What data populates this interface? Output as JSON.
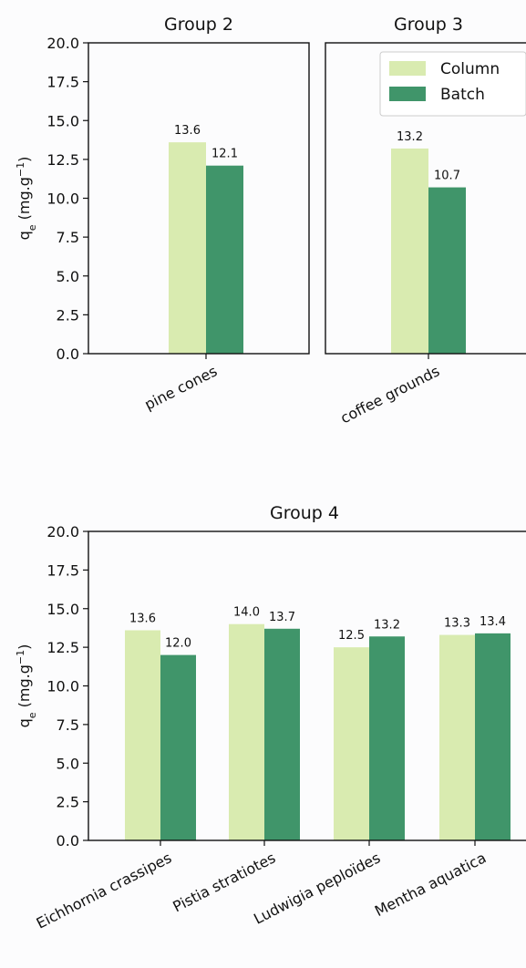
{
  "colors": {
    "column": "#d9ebb0",
    "batch": "#40956a",
    "axis": "#111111"
  },
  "legend": {
    "items": [
      "Column",
      "Batch"
    ],
    "placement": "top-right of Group 3"
  },
  "chart_data": [
    {
      "type": "bar",
      "title": "Group 2",
      "ylabel": "q_e (mg.g^-1)",
      "ylim": [
        0,
        20
      ],
      "yticks": [
        "0.0",
        "2.5",
        "5.0",
        "7.5",
        "10.0",
        "12.5",
        "15.0",
        "17.5",
        "20.0"
      ],
      "categories": [
        "pine cones"
      ],
      "series": [
        {
          "name": "Column",
          "values": [
            13.6
          ],
          "labels": [
            "13.6"
          ]
        },
        {
          "name": "Batch",
          "values": [
            12.1
          ],
          "labels": [
            "12.1"
          ]
        }
      ],
      "grid": false
    },
    {
      "type": "bar",
      "title": "Group 3",
      "ylim": [
        0,
        20
      ],
      "categories": [
        "coffee grounds"
      ],
      "series": [
        {
          "name": "Column",
          "values": [
            13.2
          ],
          "labels": [
            "13.2"
          ]
        },
        {
          "name": "Batch",
          "values": [
            10.7
          ],
          "labels": [
            "10.7"
          ]
        }
      ],
      "grid": false
    },
    {
      "type": "bar",
      "title": "Group 4",
      "ylabel": "q_e (mg.g^-1)",
      "ylim": [
        0,
        20
      ],
      "yticks": [
        "0.0",
        "2.5",
        "5.0",
        "7.5",
        "10.0",
        "12.5",
        "15.0",
        "17.5",
        "20.0"
      ],
      "categories": [
        "Eichhornia crassipes",
        "Pistia stratiotes",
        "Ludwigia peploïdes",
        "Mentha aquatica"
      ],
      "series": [
        {
          "name": "Column",
          "values": [
            13.6,
            14.0,
            12.5,
            13.3
          ],
          "labels": [
            "13.6",
            "14.0",
            "12.5",
            "13.3"
          ]
        },
        {
          "name": "Batch",
          "values": [
            12.0,
            13.7,
            13.2,
            13.4
          ],
          "labels": [
            "12.0",
            "13.7",
            "13.2",
            "13.4"
          ]
        }
      ],
      "grid": false
    }
  ]
}
